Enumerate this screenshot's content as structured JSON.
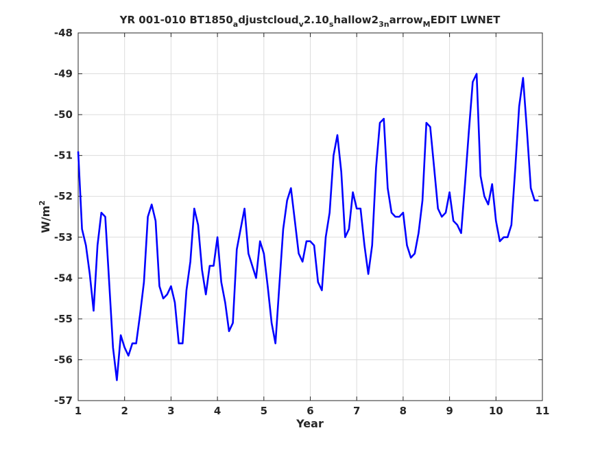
{
  "chart_data": {
    "type": "line",
    "title": "YR 001-010 BT1850",
    "title_parts": [
      {
        "text": "a",
        "sub": true
      },
      {
        "text": "djustcloud",
        "sub": false
      },
      {
        "text": "v",
        "sub": true
      },
      {
        "text": "2.10",
        "sub": false
      },
      {
        "text": "s",
        "sub": true
      },
      {
        "text": "hallow2",
        "sub": false
      },
      {
        "text": "3n",
        "sub": true
      },
      {
        "text": "arrow",
        "sub": false
      },
      {
        "text": "M",
        "sub": true
      },
      {
        "text": "EDIT LWNET",
        "sub": false
      }
    ],
    "xlabel": "Year",
    "ylabel": "W/m",
    "ylabel_superscript": "2",
    "xlim": [
      1,
      11
    ],
    "ylim": [
      -57,
      -48
    ],
    "xticks": [
      "1",
      "2",
      "3",
      "4",
      "5",
      "6",
      "7",
      "8",
      "9",
      "10",
      "11"
    ],
    "yticks": [
      "-57",
      "-56",
      "-55",
      "-54",
      "-53",
      "-52",
      "-51",
      "-50",
      "-49",
      "-48"
    ],
    "grid": true,
    "legend": "none",
    "series": [
      {
        "color": "#0000ff",
        "x": [
          1.0,
          1.083,
          1.167,
          1.25,
          1.333,
          1.417,
          1.5,
          1.583,
          1.667,
          1.75,
          1.833,
          1.917,
          2.0,
          2.083,
          2.167,
          2.25,
          2.333,
          2.417,
          2.5,
          2.583,
          2.667,
          2.75,
          2.833,
          2.917,
          3.0,
          3.083,
          3.167,
          3.25,
          3.333,
          3.417,
          3.5,
          3.583,
          3.667,
          3.75,
          3.833,
          3.917,
          4.0,
          4.083,
          4.167,
          4.25,
          4.333,
          4.417,
          4.5,
          4.583,
          4.667,
          4.75,
          4.833,
          4.917,
          5.0,
          5.083,
          5.167,
          5.25,
          5.333,
          5.417,
          5.5,
          5.583,
          5.667,
          5.75,
          5.833,
          5.917,
          6.0,
          6.083,
          6.167,
          6.25,
          6.333,
          6.417,
          6.5,
          6.583,
          6.667,
          6.75,
          6.833,
          6.917,
          7.0,
          7.083,
          7.167,
          7.25,
          7.333,
          7.417,
          7.5,
          7.583,
          7.667,
          7.75,
          7.833,
          7.917,
          8.0,
          8.083,
          8.167,
          8.25,
          8.333,
          8.417,
          8.5,
          8.583,
          8.667,
          8.75,
          8.833,
          8.917,
          9.0,
          9.083,
          9.167,
          9.25,
          9.333,
          9.417,
          9.5,
          9.583,
          9.667,
          9.75,
          9.833,
          9.917,
          10.0,
          10.083,
          10.167,
          10.25,
          10.333,
          10.417,
          10.5,
          10.583,
          10.667,
          10.75,
          10.833,
          10.917
        ],
        "y": [
          -50.9,
          -52.8,
          -53.2,
          -53.9,
          -54.8,
          -53.2,
          -52.4,
          -52.5,
          -54.1,
          -55.7,
          -56.5,
          -55.4,
          -55.7,
          -55.9,
          -55.6,
          -55.6,
          -54.9,
          -54.1,
          -52.5,
          -52.2,
          -52.6,
          -54.2,
          -54.5,
          -54.4,
          -54.2,
          -54.6,
          -55.6,
          -55.6,
          -54.3,
          -53.6,
          -52.3,
          -52.7,
          -53.8,
          -54.4,
          -53.7,
          -53.7,
          -53.0,
          -54.1,
          -54.6,
          -55.3,
          -55.1,
          -53.3,
          -52.8,
          -52.3,
          -53.4,
          -53.7,
          -54.0,
          -53.1,
          -53.4,
          -54.2,
          -55.1,
          -55.6,
          -54.2,
          -52.8,
          -52.1,
          -51.8,
          -52.6,
          -53.4,
          -53.6,
          -53.1,
          -53.1,
          -53.2,
          -54.1,
          -54.3,
          -53.0,
          -52.4,
          -51.0,
          -50.5,
          -51.4,
          -53.0,
          -52.8,
          -51.9,
          -52.3,
          -52.3,
          -53.2,
          -53.9,
          -53.2,
          -51.3,
          -50.2,
          -50.1,
          -51.8,
          -52.4,
          -52.5,
          -52.5,
          -52.4,
          -53.2,
          -53.5,
          -53.4,
          -52.9,
          -52.1,
          -50.2,
          -50.3,
          -51.3,
          -52.3,
          -52.5,
          -52.4,
          -51.9,
          -52.6,
          -52.7,
          -52.9,
          -51.7,
          -50.4,
          -49.2,
          -49.0,
          -51.5,
          -52.0,
          -52.2,
          -51.7,
          -52.6,
          -53.1,
          -53.0,
          -53.0,
          -52.7,
          -51.3,
          -49.8,
          -49.1,
          -50.4,
          -51.8,
          -52.1,
          -52.1
        ]
      }
    ]
  }
}
